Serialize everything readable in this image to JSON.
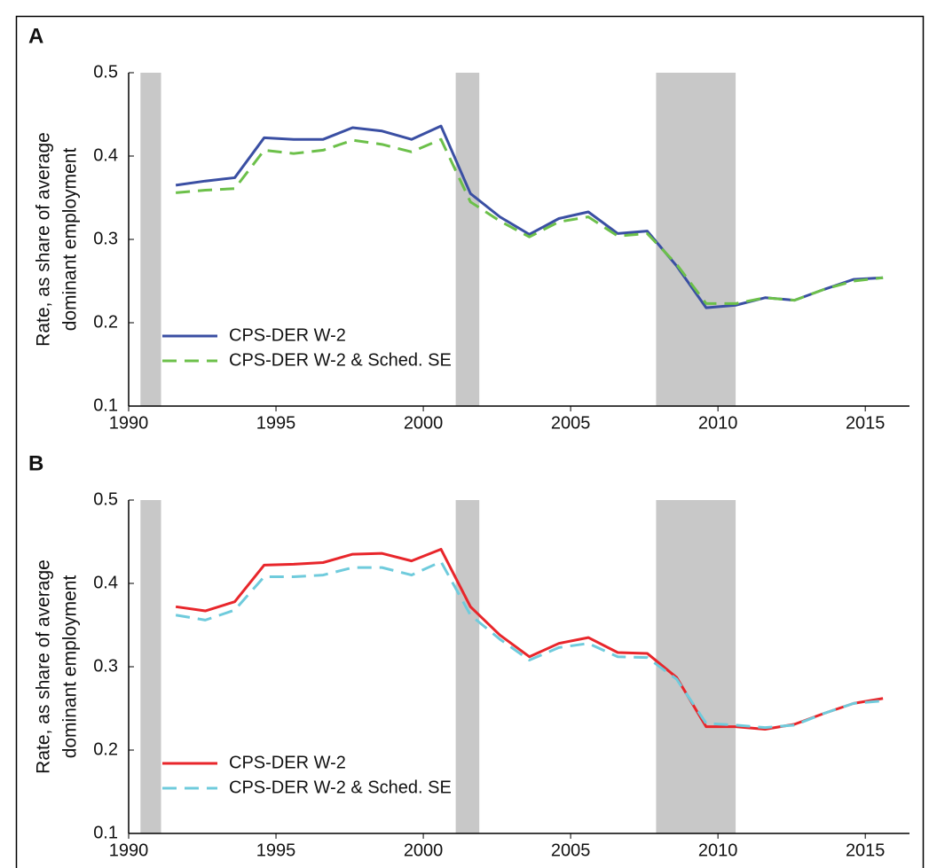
{
  "chart_data": [
    {
      "type": "line",
      "panel_label": "A",
      "y_label": [
        "Rate, as share of average",
        "dominant employment"
      ],
      "x": [
        1991.6,
        1992.6,
        1993.6,
        1994.6,
        1995.6,
        1996.6,
        1997.6,
        1998.6,
        1999.6,
        2000.6,
        2001.6,
        2002.6,
        2003.6,
        2004.6,
        2005.6,
        2006.6,
        2007.6,
        2008.6,
        2009.6,
        2010.6,
        2011.6,
        2012.6,
        2013.6,
        2014.6,
        2015.6
      ],
      "series": [
        {
          "name": "CPS-DER W-2",
          "color": "#3a4fa3",
          "dash": false,
          "values": [
            0.365,
            0.37,
            0.374,
            0.422,
            0.42,
            0.42,
            0.434,
            0.43,
            0.42,
            0.436,
            0.355,
            0.327,
            0.306,
            0.325,
            0.333,
            0.307,
            0.31,
            0.268,
            0.218,
            0.221,
            0.23,
            0.227,
            0.24,
            0.252,
            0.254
          ]
        },
        {
          "name": "CPS-DER W-2 & Sched. SE",
          "color": "#6cc04a",
          "dash": true,
          "values": [
            0.356,
            0.359,
            0.361,
            0.407,
            0.403,
            0.407,
            0.419,
            0.414,
            0.405,
            0.42,
            0.345,
            0.322,
            0.303,
            0.321,
            0.327,
            0.304,
            0.307,
            0.27,
            0.223,
            0.223,
            0.23,
            0.227,
            0.24,
            0.25,
            0.254
          ]
        }
      ],
      "shaded_periods": [
        [
          1990.4,
          1991.1
        ],
        [
          2001.1,
          2001.9
        ],
        [
          2007.9,
          2010.6
        ]
      ],
      "xlim": [
        1990,
        2016.5
      ],
      "xticks": [
        1990,
        1995,
        2000,
        2005,
        2010,
        2015
      ],
      "ylim": [
        0.1,
        0.5
      ],
      "yticks": [
        0.1,
        0.2,
        0.3,
        0.4,
        0.5
      ],
      "legend": "lower left"
    },
    {
      "type": "line",
      "panel_label": "B",
      "y_label": [
        "Rate, as share of average",
        "dominant employment"
      ],
      "x": [
        1991.6,
        1992.6,
        1993.6,
        1994.6,
        1995.6,
        1996.6,
        1997.6,
        1998.6,
        1999.6,
        2000.6,
        2001.6,
        2002.6,
        2003.6,
        2004.6,
        2005.6,
        2006.6,
        2007.6,
        2008.6,
        2009.6,
        2010.6,
        2011.6,
        2012.6,
        2013.6,
        2014.6,
        2015.6
      ],
      "series": [
        {
          "name": "CPS-DER W-2",
          "color": "#e8262b",
          "dash": false,
          "values": [
            0.372,
            0.367,
            0.378,
            0.422,
            0.423,
            0.425,
            0.435,
            0.436,
            0.427,
            0.441,
            0.372,
            0.338,
            0.312,
            0.328,
            0.335,
            0.317,
            0.316,
            0.287,
            0.228,
            0.228,
            0.225,
            0.231,
            0.244,
            0.256,
            0.262
          ]
        },
        {
          "name": "CPS-DER W-2 & Sched. SE",
          "color": "#6fcbdc",
          "dash": true,
          "values": [
            0.362,
            0.356,
            0.368,
            0.408,
            0.408,
            0.41,
            0.419,
            0.419,
            0.41,
            0.426,
            0.362,
            0.333,
            0.308,
            0.323,
            0.328,
            0.312,
            0.311,
            0.285,
            0.232,
            0.23,
            0.227,
            0.23,
            0.244,
            0.256,
            0.259
          ]
        }
      ],
      "shaded_periods": [
        [
          1990.4,
          1991.1
        ],
        [
          2001.1,
          2001.9
        ],
        [
          2007.9,
          2010.6
        ]
      ],
      "xlim": [
        1990,
        2016.5
      ],
      "xticks": [
        1990,
        1995,
        2000,
        2005,
        2010,
        2015
      ],
      "ylim": [
        0.1,
        0.5
      ],
      "yticks": [
        0.1,
        0.2,
        0.3,
        0.4,
        0.5
      ],
      "legend": "lower left"
    }
  ]
}
